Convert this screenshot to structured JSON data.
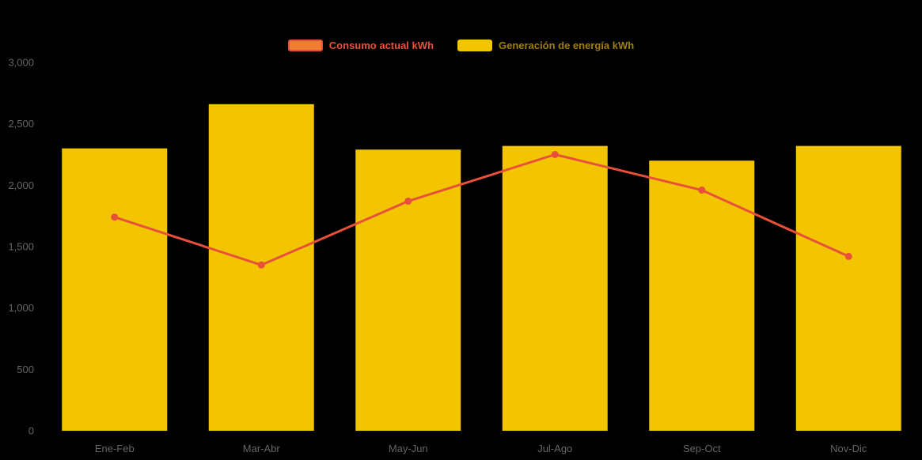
{
  "page": {
    "background_color": "#000000"
  },
  "legend": {
    "items": [
      {
        "label": "Consumo actual kWh",
        "text_color": "#e8503a",
        "swatch_fill": "#ef7d33",
        "swatch_stroke": "#e8503a"
      },
      {
        "label": "Generación de energía kWh",
        "text_color": "#a07f0a",
        "swatch_fill": "#f2c500",
        "swatch_stroke": "#f2c500"
      }
    ]
  },
  "axis": {
    "tick_label_color": "#666666"
  },
  "chart_data": {
    "type": "bar",
    "subtype": "bar-and-line combo",
    "title": "",
    "xlabel": "",
    "ylabel": "",
    "categories": [
      "Ene-Feb",
      "Mar-Abr",
      "May-Jun",
      "Jul-Ago",
      "Sep-Oct",
      "Nov-Dic"
    ],
    "series": [
      {
        "name": "Generación de energía kWh",
        "type": "bar",
        "color": "#f2c500",
        "values": [
          2300,
          2660,
          2290,
          2320,
          2200,
          2320
        ]
      },
      {
        "name": "Consumo actual kWh",
        "type": "line",
        "color": "#e8503a",
        "marker": "circle",
        "values": [
          1740,
          1350,
          1870,
          2250,
          1960,
          1420
        ]
      }
    ],
    "yticks": [
      0,
      500,
      1000,
      1500,
      2000,
      2500,
      3000
    ],
    "ytick_labels": [
      "0",
      "500",
      "1,000",
      "1,500",
      "2,000",
      "2,500",
      "3,000"
    ],
    "ylim": [
      0,
      3000
    ],
    "grid": false,
    "legend_position": "top-center"
  }
}
